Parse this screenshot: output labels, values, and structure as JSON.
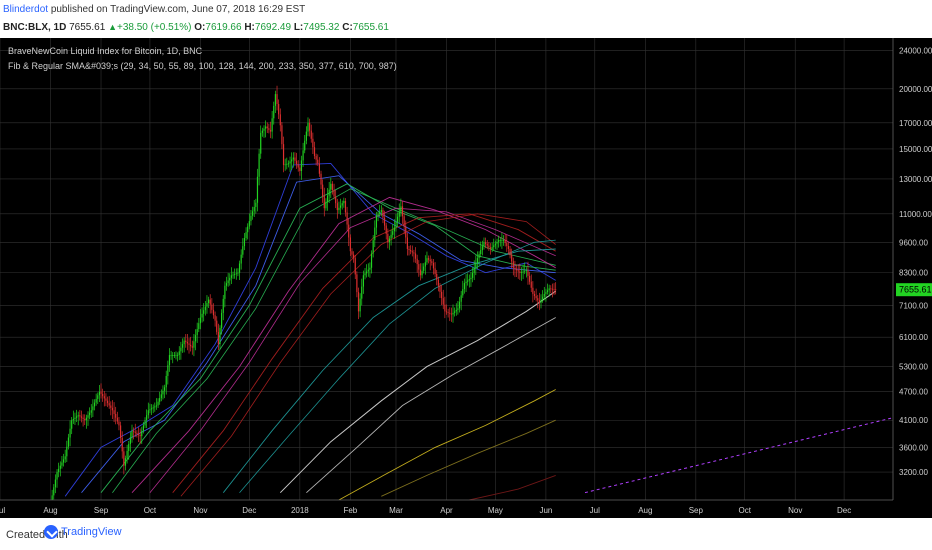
{
  "header": {
    "author": "Blinderdot",
    "published": "published on TradingView.com, June 07, 2018 16:29 EST",
    "symbol": "BNC:BLX, 1D",
    "last": "7655.61",
    "change": "+38.50",
    "change_pct": "(+0.51%)",
    "open_label": "O:",
    "open": "7619.66",
    "high_label": "H:",
    "high": "7692.49",
    "low_label": "L:",
    "low": "7495.32",
    "close_label": "C:",
    "close": "7655.61"
  },
  "footer": {
    "created_with": "Created with",
    "brand": "TradingView"
  },
  "colors": {
    "background": "#000000",
    "up": "#22d422",
    "down": "#e03030",
    "grid": "#333333",
    "projection": "#b040ff"
  },
  "chart_data": {
    "type": "candlestick",
    "title": "BraveNewCoin Liquid Index for Bitcoin, 1D, BNC",
    "indicator": "Fib & Regular SMA&#039;s (29, 34, 50, 55, 89, 100, 128, 144, 200, 233, 350, 377, 610, 700, 987)",
    "last_price_label": "7655.61",
    "y_scale": "log",
    "y_ticks": [
      3200,
      3600,
      4100,
      4700,
      5300,
      6100,
      7100,
      8300,
      9600,
      11000,
      13000,
      15000,
      17000,
      20000,
      24000
    ],
    "y_tick_labels": [
      "3200.00",
      "3600.00",
      "4100.00",
      "4700.00",
      "5300.00",
      "6100.00",
      "7100.00",
      "8300.00",
      "9600.00",
      "11000.00",
      "13000.00",
      "15000.00",
      "17000.00",
      "20000.00",
      "24000.00"
    ],
    "ylim": [
      2800,
      25500
    ],
    "x_range": [
      "2017-07-01",
      "2018-12-31"
    ],
    "x_ticks": [
      {
        "label": "Jul",
        "date": "2017-07-01"
      },
      {
        "label": "Aug",
        "date": "2017-08-01"
      },
      {
        "label": "Sep",
        "date": "2017-09-01"
      },
      {
        "label": "Oct",
        "date": "2017-10-01"
      },
      {
        "label": "Nov",
        "date": "2017-11-01"
      },
      {
        "label": "Dec",
        "date": "2017-12-01"
      },
      {
        "label": "2018",
        "date": "2018-01-01"
      },
      {
        "label": "Feb",
        "date": "2018-02-01"
      },
      {
        "label": "Mar",
        "date": "2018-03-01"
      },
      {
        "label": "Apr",
        "date": "2018-04-01"
      },
      {
        "label": "May",
        "date": "2018-05-01"
      },
      {
        "label": "Jun",
        "date": "2018-06-01"
      },
      {
        "label": "Jul",
        "date": "2018-07-01"
      },
      {
        "label": "Aug",
        "date": "2018-08-01"
      },
      {
        "label": "Sep",
        "date": "2018-09-01"
      },
      {
        "label": "Oct",
        "date": "2018-10-01"
      },
      {
        "label": "Nov",
        "date": "2018-11-01"
      },
      {
        "label": "Dec",
        "date": "2018-12-01"
      }
    ],
    "price_path": [
      [
        "2017-08-01",
        2750
      ],
      [
        "2017-08-05",
        3200
      ],
      [
        "2017-08-10",
        3450
      ],
      [
        "2017-08-14",
        4100
      ],
      [
        "2017-08-18",
        4200
      ],
      [
        "2017-08-22",
        4100
      ],
      [
        "2017-08-26",
        4300
      ],
      [
        "2017-08-31",
        4700
      ],
      [
        "2017-09-04",
        4500
      ],
      [
        "2017-09-08",
        4300
      ],
      [
        "2017-09-12",
        4000
      ],
      [
        "2017-09-15",
        3300
      ],
      [
        "2017-09-20",
        3900
      ],
      [
        "2017-09-25",
        3800
      ],
      [
        "2017-09-30",
        4300
      ],
      [
        "2017-10-05",
        4400
      ],
      [
        "2017-10-10",
        4800
      ],
      [
        "2017-10-13",
        5600
      ],
      [
        "2017-10-18",
        5600
      ],
      [
        "2017-10-22",
        6000
      ],
      [
        "2017-10-27",
        5800
      ],
      [
        "2017-11-01",
        6700
      ],
      [
        "2017-11-06",
        7300
      ],
      [
        "2017-11-10",
        6600
      ],
      [
        "2017-11-12",
        5900
      ],
      [
        "2017-11-16",
        7800
      ],
      [
        "2017-11-20",
        8200
      ],
      [
        "2017-11-24",
        8300
      ],
      [
        "2017-11-28",
        9800
      ],
      [
        "2017-12-02",
        10900
      ],
      [
        "2017-12-05",
        11600
      ],
      [
        "2017-12-08",
        16200
      ],
      [
        "2017-12-11",
        16700
      ],
      [
        "2017-12-14",
        16300
      ],
      [
        "2017-12-17",
        19500
      ],
      [
        "2017-12-20",
        16800
      ],
      [
        "2017-12-22",
        13900
      ],
      [
        "2017-12-25",
        14000
      ],
      [
        "2017-12-28",
        14400
      ],
      [
        "2018-01-01",
        13500
      ],
      [
        "2018-01-06",
        17000
      ],
      [
        "2018-01-10",
        14500
      ],
      [
        "2018-01-12",
        14000
      ],
      [
        "2018-01-16",
        11300
      ],
      [
        "2018-01-20",
        12700
      ],
      [
        "2018-01-24",
        11200
      ],
      [
        "2018-01-28",
        11700
      ],
      [
        "2018-02-01",
        9200
      ],
      [
        "2018-02-03",
        8900
      ],
      [
        "2018-02-06",
        6900
      ],
      [
        "2018-02-09",
        8200
      ],
      [
        "2018-02-13",
        8500
      ],
      [
        "2018-02-17",
        10900
      ],
      [
        "2018-02-20",
        11200
      ],
      [
        "2018-02-24",
        9600
      ],
      [
        "2018-02-28",
        10300
      ],
      [
        "2018-03-04",
        11400
      ],
      [
        "2018-03-08",
        9300
      ],
      [
        "2018-03-12",
        9100
      ],
      [
        "2018-03-16",
        8200
      ],
      [
        "2018-03-20",
        8900
      ],
      [
        "2018-03-23",
        8700
      ],
      [
        "2018-03-27",
        7800
      ],
      [
        "2018-03-31",
        6900
      ],
      [
        "2018-04-04",
        6800
      ],
      [
        "2018-04-08",
        7000
      ],
      [
        "2018-04-12",
        7900
      ],
      [
        "2018-04-16",
        8100
      ],
      [
        "2018-04-20",
        8900
      ],
      [
        "2018-04-24",
        9600
      ],
      [
        "2018-04-28",
        9300
      ],
      [
        "2018-05-03",
        9700
      ],
      [
        "2018-05-06",
        9700
      ],
      [
        "2018-05-09",
        9300
      ],
      [
        "2018-05-12",
        8500
      ],
      [
        "2018-05-16",
        8300
      ],
      [
        "2018-05-20",
        8400
      ],
      [
        "2018-05-24",
        7500
      ],
      [
        "2018-05-28",
        7200
      ],
      [
        "2018-05-31",
        7500
      ],
      [
        "2018-06-03",
        7700
      ],
      [
        "2018-06-07",
        7655
      ]
    ],
    "moving_averages": [
      {
        "color": "#3344ee",
        "width": 0.9,
        "points": [
          [
            "2017-08-10",
            2850
          ],
          [
            "2017-09-01",
            3600
          ],
          [
            "2017-09-20",
            3900
          ],
          [
            "2017-10-15",
            4400
          ],
          [
            "2017-11-10",
            5900
          ],
          [
            "2017-12-05",
            8500
          ],
          [
            "2017-12-28",
            13900
          ],
          [
            "2018-01-20",
            14000
          ],
          [
            "2018-02-15",
            11000
          ],
          [
            "2018-03-10",
            10000
          ],
          [
            "2018-04-01",
            9000
          ],
          [
            "2018-04-25",
            8300
          ],
          [
            "2018-05-20",
            8700
          ],
          [
            "2018-06-07",
            8000
          ]
        ]
      },
      {
        "color": "#4466ff",
        "width": 0.9,
        "points": [
          [
            "2017-08-20",
            2900
          ],
          [
            "2017-09-15",
            3700
          ],
          [
            "2017-10-10",
            4100
          ],
          [
            "2017-11-05",
            5400
          ],
          [
            "2017-12-05",
            7800
          ],
          [
            "2017-12-30",
            12800
          ],
          [
            "2018-01-25",
            13200
          ],
          [
            "2018-02-20",
            11000
          ],
          [
            "2018-03-15",
            10000
          ],
          [
            "2018-04-10",
            8800
          ],
          [
            "2018-05-05",
            8500
          ],
          [
            "2018-06-07",
            8300
          ]
        ]
      },
      {
        "color": "#2bbf5a",
        "width": 0.9,
        "points": [
          [
            "2017-09-01",
            2900
          ],
          [
            "2017-10-01",
            3900
          ],
          [
            "2017-11-01",
            5000
          ],
          [
            "2017-12-01",
            7100
          ],
          [
            "2018-01-01",
            11300
          ],
          [
            "2018-01-30",
            12700
          ],
          [
            "2018-02-25",
            11300
          ],
          [
            "2018-03-25",
            10400
          ],
          [
            "2018-04-20",
            9000
          ],
          [
            "2018-05-15",
            8600
          ],
          [
            "2018-06-07",
            8400
          ]
        ]
      },
      {
        "color": "#2bbf5a",
        "width": 0.8,
        "points": [
          [
            "2017-09-08",
            2900
          ],
          [
            "2017-10-05",
            3850
          ],
          [
            "2017-11-05",
            5000
          ],
          [
            "2017-12-05",
            7000
          ],
          [
            "2018-01-05",
            11000
          ],
          [
            "2018-02-01",
            12400
          ],
          [
            "2018-03-01",
            11300
          ],
          [
            "2018-04-01",
            10200
          ],
          [
            "2018-05-01",
            9200
          ],
          [
            "2018-06-07",
            8600
          ]
        ]
      },
      {
        "color": "#c2309a",
        "width": 0.9,
        "points": [
          [
            "2017-09-20",
            2900
          ],
          [
            "2017-10-25",
            3900
          ],
          [
            "2017-11-25",
            5300
          ],
          [
            "2017-12-25",
            7600
          ],
          [
            "2018-01-25",
            10500
          ],
          [
            "2018-02-25",
            11900
          ],
          [
            "2018-03-25",
            11200
          ],
          [
            "2018-04-25",
            10200
          ],
          [
            "2018-05-25",
            9000
          ],
          [
            "2018-06-07",
            8500
          ]
        ]
      },
      {
        "color": "#c2309a",
        "width": 0.8,
        "points": [
          [
            "2017-10-01",
            2900
          ],
          [
            "2017-11-01",
            3900
          ],
          [
            "2017-12-01",
            5400
          ],
          [
            "2018-01-01",
            7900
          ],
          [
            "2018-02-01",
            10300
          ],
          [
            "2018-03-01",
            11300
          ],
          [
            "2018-04-01",
            11100
          ],
          [
            "2018-05-01",
            10200
          ],
          [
            "2018-06-07",
            9000
          ]
        ]
      },
      {
        "color": "#b02020",
        "width": 0.9,
        "points": [
          [
            "2017-10-15",
            2900
          ],
          [
            "2017-11-15",
            3900
          ],
          [
            "2017-12-15",
            5500
          ],
          [
            "2018-01-15",
            7700
          ],
          [
            "2018-02-15",
            9800
          ],
          [
            "2018-03-15",
            10800
          ],
          [
            "2018-04-15",
            11000
          ],
          [
            "2018-05-15",
            10200
          ],
          [
            "2018-06-07",
            9200
          ]
        ]
      },
      {
        "color": "#b02020",
        "width": 0.8,
        "points": [
          [
            "2017-10-20",
            2850
          ],
          [
            "2017-11-20",
            3800
          ],
          [
            "2017-12-20",
            5400
          ],
          [
            "2018-01-20",
            7500
          ],
          [
            "2018-02-20",
            9500
          ],
          [
            "2018-03-20",
            10600
          ],
          [
            "2018-04-20",
            11000
          ],
          [
            "2018-05-20",
            10600
          ],
          [
            "2018-06-07",
            9500
          ]
        ]
      },
      {
        "color": "#1fa0a0",
        "width": 0.9,
        "points": [
          [
            "2017-11-15",
            2900
          ],
          [
            "2017-12-15",
            3900
          ],
          [
            "2018-01-15",
            5200
          ],
          [
            "2018-02-15",
            6700
          ],
          [
            "2018-03-15",
            7800
          ],
          [
            "2018-04-15",
            8600
          ],
          [
            "2018-05-15",
            9200
          ],
          [
            "2018-06-07",
            9300
          ]
        ]
      },
      {
        "color": "#1fa0a0",
        "width": 0.8,
        "points": [
          [
            "2017-11-25",
            2900
          ],
          [
            "2017-12-25",
            3800
          ],
          [
            "2018-01-25",
            5000
          ],
          [
            "2018-02-25",
            6500
          ],
          [
            "2018-03-25",
            7700
          ],
          [
            "2018-04-25",
            8700
          ],
          [
            "2018-05-25",
            9600
          ],
          [
            "2018-06-07",
            9700
          ]
        ]
      },
      {
        "color": "#dddddd",
        "width": 1.0,
        "points": [
          [
            "2017-12-20",
            2900
          ],
          [
            "2018-01-20",
            3700
          ],
          [
            "2018-02-20",
            4500
          ],
          [
            "2018-03-20",
            5300
          ],
          [
            "2018-04-20",
            6000
          ],
          [
            "2018-05-20",
            6900
          ],
          [
            "2018-06-07",
            7600
          ]
        ]
      },
      {
        "color": "#c8c8c8",
        "width": 0.9,
        "points": [
          [
            "2018-01-05",
            2900
          ],
          [
            "2018-02-05",
            3600
          ],
          [
            "2018-03-05",
            4400
          ],
          [
            "2018-04-05",
            5100
          ],
          [
            "2018-05-05",
            5800
          ],
          [
            "2018-06-07",
            6700
          ]
        ]
      },
      {
        "color": "#d8c020",
        "width": 0.9,
        "points": [
          [
            "2018-01-25",
            2800
          ],
          [
            "2018-02-25",
            3200
          ],
          [
            "2018-03-25",
            3600
          ],
          [
            "2018-04-25",
            4000
          ],
          [
            "2018-05-25",
            4500
          ],
          [
            "2018-06-07",
            4750
          ]
        ]
      },
      {
        "color": "#8a7a20",
        "width": 0.9,
        "points": [
          [
            "2018-02-20",
            2850
          ],
          [
            "2018-03-20",
            3150
          ],
          [
            "2018-04-20",
            3500
          ],
          [
            "2018-05-20",
            3850
          ],
          [
            "2018-06-07",
            4100
          ]
        ]
      },
      {
        "color": "#7a1a1a",
        "width": 0.9,
        "points": [
          [
            "2018-04-15",
            2800
          ],
          [
            "2018-05-15",
            2950
          ],
          [
            "2018-06-07",
            3150
          ]
        ]
      }
    ],
    "projection_line": [
      [
        "2018-06-25",
        2900
      ],
      [
        "2018-12-31",
        4150
      ]
    ]
  }
}
